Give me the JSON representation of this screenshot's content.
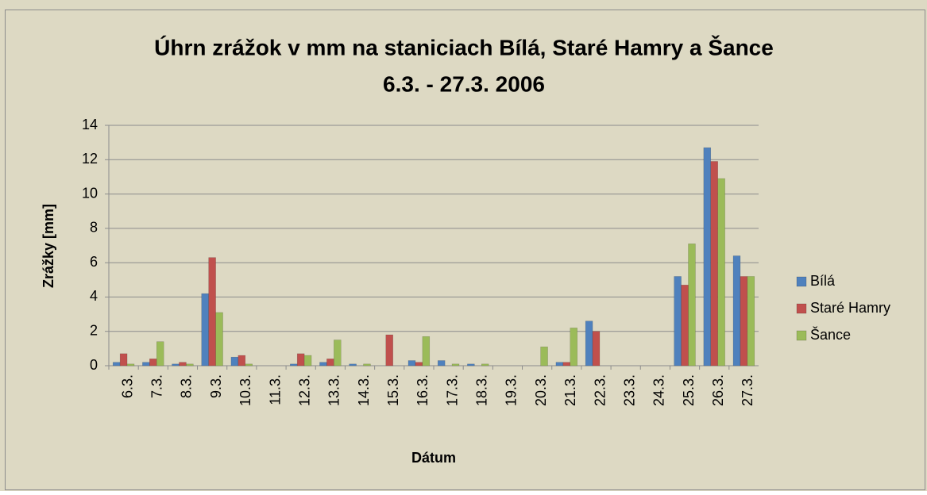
{
  "chart_data": {
    "type": "bar",
    "title": [
      "Úhrn zrážok v mm na staniciach Bílá, Staré Hamry a Šance",
      "6.3. - 27.3. 2006"
    ],
    "x_label": "Dátum",
    "y_label": "Zrážky [mm]",
    "categories": [
      "6.3.",
      "7.3.",
      "8.3.",
      "9.3.",
      "10.3.",
      "11.3.",
      "12.3.",
      "13.3.",
      "14.3.",
      "15.3.",
      "16.3.",
      "17.3.",
      "18.3.",
      "19.3.",
      "20.3.",
      "21.3.",
      "22.3.",
      "23.3.",
      "24.3.",
      "25.3.",
      "26.3.",
      "27.3."
    ],
    "series": [
      {
        "name": "Bílá",
        "color": "#4f81bd",
        "values": [
          0.2,
          0.2,
          0.1,
          4.2,
          0.5,
          0,
          0.1,
          0.2,
          0.1,
          0,
          0.3,
          0.3,
          0.1,
          0,
          0,
          0.2,
          2.6,
          0,
          0,
          5.2,
          12.7,
          6.4
        ]
      },
      {
        "name": "Staré Hamry",
        "color": "#c0504d",
        "values": [
          0.7,
          0.4,
          0.2,
          6.3,
          0.6,
          0,
          0.7,
          0.4,
          0,
          1.8,
          0.2,
          0,
          0,
          0,
          0,
          0.2,
          2.0,
          0,
          0,
          4.7,
          11.9,
          5.2
        ]
      },
      {
        "name": "Šance",
        "color": "#9bbb59",
        "values": [
          0.1,
          1.4,
          0.1,
          3.1,
          0.1,
          0,
          0.6,
          1.5,
          0.1,
          0,
          1.7,
          0.1,
          0.1,
          0,
          1.1,
          2.2,
          0,
          0,
          0,
          7.1,
          10.9,
          5.2
        ]
      }
    ],
    "ylim": [
      0,
      14
    ],
    "yticks": [
      0,
      2,
      4,
      6,
      8,
      10,
      12,
      14
    ],
    "grid": true,
    "legend": "right"
  }
}
